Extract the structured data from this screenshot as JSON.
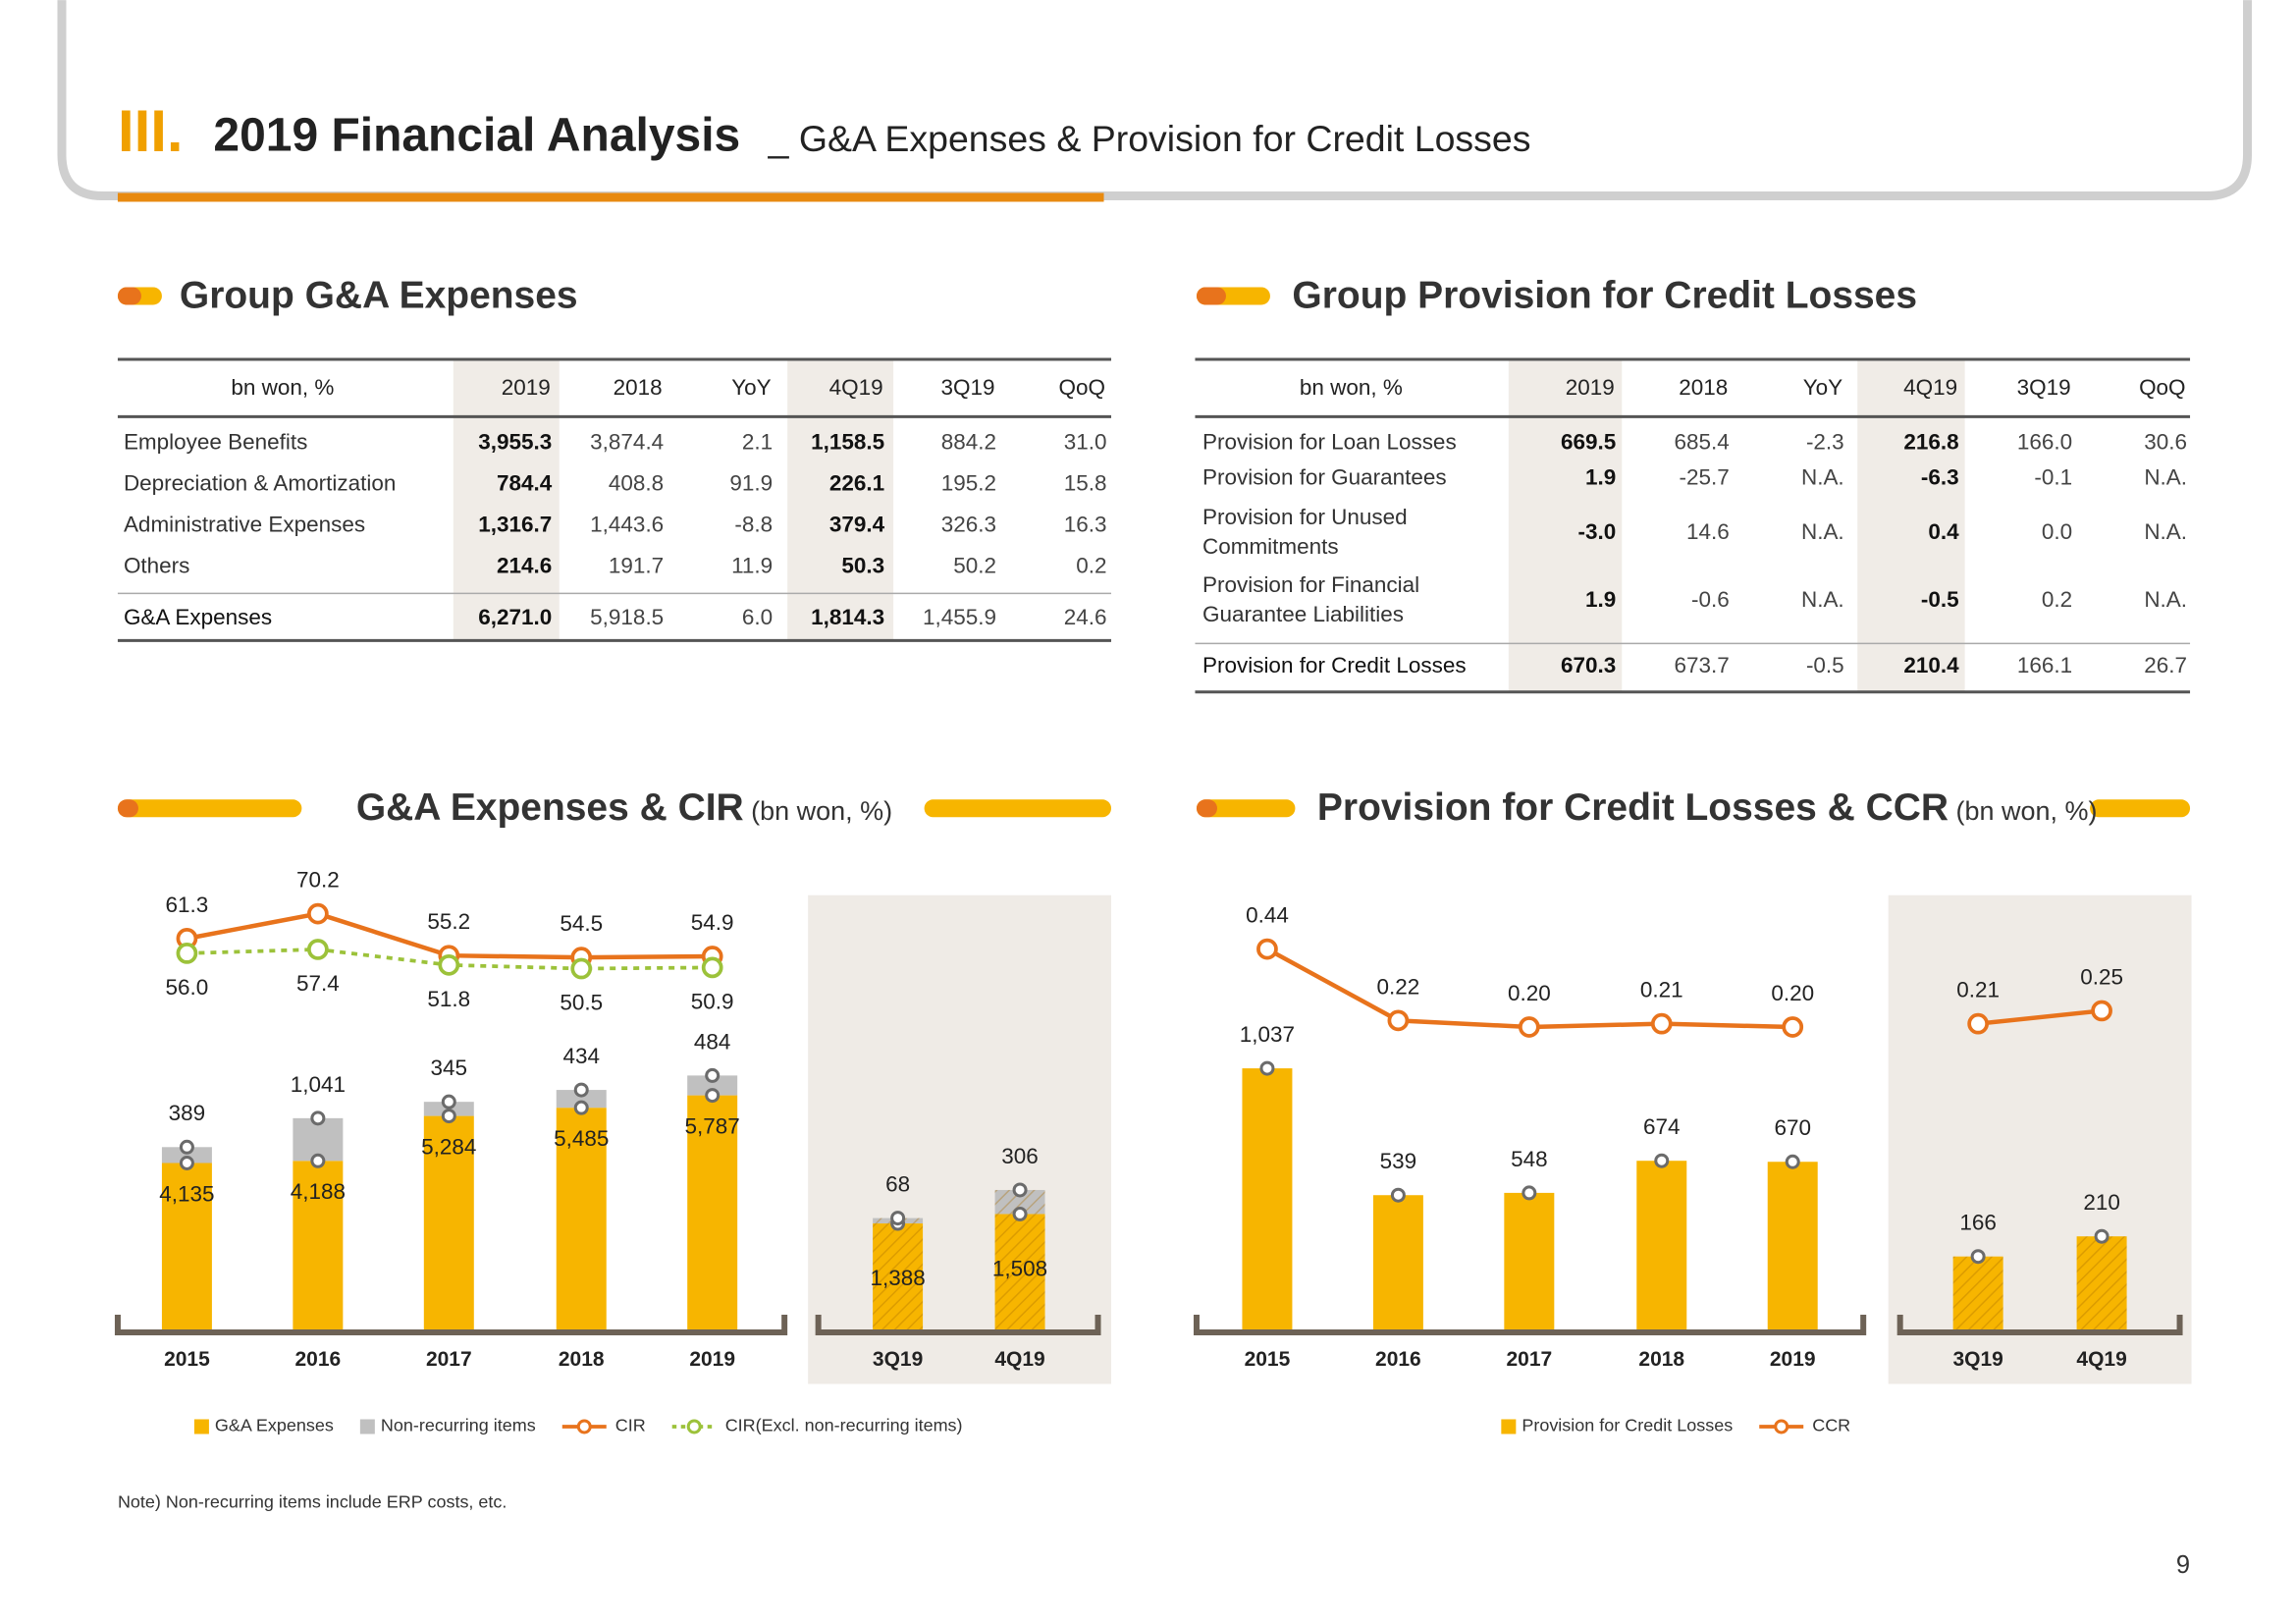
{
  "header": {
    "section": "III.",
    "title": "2019 Financial Analysis",
    "subtitle": "_ G&A Expenses & Provision for Credit Losses"
  },
  "tables": [
    {
      "title": "Group G&A Expenses",
      "columns": [
        "bn won, %",
        "2019",
        "2018",
        "YoY",
        "4Q19",
        "3Q19",
        "QoQ"
      ],
      "rows": [
        [
          "Employee Benefits",
          "3,955.3",
          "3,874.4",
          "2.1",
          "1,158.5",
          "884.2",
          "31.0"
        ],
        [
          "Depreciation & Amortization",
          "784.4",
          "408.8",
          "91.9",
          "226.1",
          "195.2",
          "15.8"
        ],
        [
          "Administrative Expenses",
          "1,316.7",
          "1,443.6",
          "-8.8",
          "379.4",
          "326.3",
          "16.3"
        ],
        [
          "Others",
          "214.6",
          "191.7",
          "11.9",
          "50.3",
          "50.2",
          "0.2"
        ]
      ],
      "total": [
        "G&A Expenses",
        "6,271.0",
        "5,918.5",
        "6.0",
        "1,814.3",
        "1,455.9",
        "24.6"
      ]
    },
    {
      "title": "Group Provision for Credit Losses",
      "columns": [
        "bn won, %",
        "2019",
        "2018",
        "YoY",
        "4Q19",
        "3Q19",
        "QoQ"
      ],
      "rows": [
        [
          "Provision for Loan Losses",
          "669.5",
          "685.4",
          "-2.3",
          "216.8",
          "166.0",
          "30.6"
        ],
        [
          "Provision for Guarantees",
          "1.9",
          "-25.7",
          "N.A.",
          "-6.3",
          "-0.1",
          "N.A."
        ],
        [
          [
            "Provision for Unused",
            "Commitments"
          ],
          "-3.0",
          "14.6",
          "N.A.",
          "0.4",
          "0.0",
          "N.A."
        ],
        [
          [
            "Provision for Financial",
            "Guarantee Liabilities"
          ],
          "1.9",
          "-0.6",
          "N.A.",
          "-0.5",
          "0.2",
          "N.A."
        ]
      ],
      "total": [
        "Provision for Credit Losses",
        "670.3",
        "673.7",
        "-0.5",
        "210.4",
        "166.1",
        "26.7"
      ]
    }
  ],
  "chart_data": [
    {
      "type": "bar",
      "title": "G&A Expenses & CIR",
      "unit": "(bn won, %)",
      "legend": "bottom",
      "categories": [
        "2015",
        "2016",
        "2017",
        "2018",
        "2019"
      ],
      "ylim": [
        0,
        11500
      ],
      "y2lim": [
        -80,
        89
      ],
      "series": [
        {
          "name": "G&A Expenses",
          "color": "#f7b500",
          "values": [
            4135,
            4188,
            5284,
            5485,
            5787
          ],
          "value_labels": [
            "4,135",
            "4,188",
            "5,284",
            "5,485",
            "5,787"
          ]
        },
        {
          "name": "Non-recurring items",
          "color": "#c0c0c0",
          "values": [
            389,
            1041,
            345,
            434,
            484
          ],
          "value_labels": [
            "389",
            "1,041",
            "345",
            "434",
            "484"
          ]
        },
        {
          "name": "CIR",
          "type": "line",
          "axis": "y2",
          "color": "#e8731c",
          "values": [
            61.3,
            70.2,
            55.2,
            54.5,
            54.9
          ]
        },
        {
          "name": "CIR(Excl. non-recurring items)",
          "type": "line",
          "axis": "y2",
          "dashed": true,
          "color": "#9cc23a",
          "values": [
            56.0,
            57.4,
            51.8,
            50.5,
            50.9
          ],
          "value_labels": [
            "56.0",
            "57.4",
            "51.8",
            "50.5",
            "50.9"
          ]
        }
      ]
    },
    {
      "type": "bar",
      "pattern": "hatch",
      "categories": [
        "3Q19",
        "4Q19"
      ],
      "ylim": [
        0,
        6000
      ],
      "series": [
        {
          "color": "#f7b500",
          "values": [
            1388,
            1508
          ],
          "value_labels": [
            "1,388",
            "1,508"
          ]
        },
        {
          "color": "#c0c0c0",
          "values": [
            68,
            306
          ]
        }
      ]
    },
    {
      "type": "bar",
      "title": "Provision for Credit Losses & CCR",
      "unit": "(bn won, %)",
      "legend": "bottom",
      "categories": [
        "2015",
        "2016",
        "2017",
        "2018",
        "2019"
      ],
      "ylim": [
        0,
        1850
      ],
      "y2lim": [
        -0.74,
        0.71
      ],
      "series": [
        {
          "name": "Provision for Credit Losses",
          "color": "#f7b500",
          "values": [
            1037,
            539,
            548,
            674,
            670
          ],
          "value_labels": [
            "1,037",
            "539",
            "548",
            "674",
            "670"
          ]
        },
        {
          "name": "CCR",
          "type": "line",
          "axis": "y2",
          "color": "#e8731c",
          "values": [
            0.44,
            0.22,
            0.2,
            0.21,
            0.2
          ],
          "value_labels": [
            "0.44",
            "0.22",
            "0.20",
            "0.21",
            "0.20"
          ]
        }
      ]
    },
    {
      "type": "bar",
      "pattern": "hatch",
      "categories": [
        "3Q19",
        "4Q19"
      ],
      "ylim": [
        0,
        1030
      ],
      "y2lim": [
        -0.74,
        0.71
      ],
      "series": [
        {
          "color": "#f7b500",
          "values": [
            166,
            210
          ]
        },
        {
          "type": "line",
          "axis": "y2",
          "color": "#e8731c",
          "values": [
            0.21,
            0.25
          ]
        }
      ]
    }
  ],
  "note": "Note) Non-recurring items include ERP costs, etc.",
  "page_number": "9"
}
